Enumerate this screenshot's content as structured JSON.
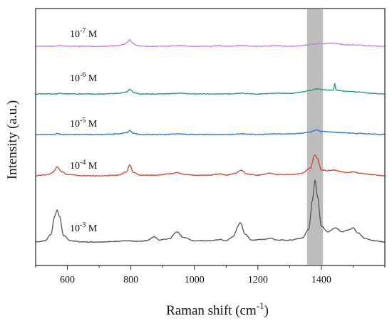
{
  "chart_data": {
    "type": "line",
    "title": "",
    "xlabel": "Raman shift (cm",
    "xlabel_sup": "-1",
    "xlabel_close": ")",
    "ylabel": "Intensity (a.u.)",
    "xlim": [
      500,
      1600
    ],
    "xticks": [
      600,
      800,
      1000,
      1200,
      1400
    ],
    "y_ticks_shown": false,
    "highlight_band": {
      "x_range": [
        1355,
        1405
      ],
      "color": "#bdbdbd"
    },
    "series": [
      {
        "name": "10-7 M",
        "label_base": "10",
        "label_exp": "-7",
        "label_unit": " M",
        "color": "#c77fe0",
        "points": [
          [
            500,
            0.0
          ],
          [
            540,
            0.0
          ],
          [
            560,
            0.0
          ],
          [
            575,
            0.01
          ],
          [
            600,
            0.0
          ],
          [
            650,
            0.0
          ],
          [
            700,
            0.0
          ],
          [
            760,
            0.01
          ],
          [
            780,
            0.03
          ],
          [
            790,
            0.07
          ],
          [
            797,
            0.1
          ],
          [
            805,
            0.05
          ],
          [
            820,
            0.01
          ],
          [
            850,
            0.0
          ],
          [
            900,
            0.0
          ],
          [
            950,
            0.01
          ],
          [
            1000,
            0.0
          ],
          [
            1050,
            0.0
          ],
          [
            1080,
            0.01
          ],
          [
            1100,
            0.0
          ],
          [
            1150,
            0.01
          ],
          [
            1200,
            0.0
          ],
          [
            1250,
            0.01
          ],
          [
            1300,
            0.0
          ],
          [
            1340,
            0.01
          ],
          [
            1370,
            0.03
          ],
          [
            1390,
            0.04
          ],
          [
            1410,
            0.04
          ],
          [
            1430,
            0.05
          ],
          [
            1450,
            0.04
          ],
          [
            1480,
            0.02
          ],
          [
            1510,
            0.02
          ],
          [
            1540,
            0.01
          ],
          [
            1600,
            0.0
          ]
        ]
      },
      {
        "name": "10-6 M",
        "label_base": "10",
        "label_exp": "-6",
        "label_unit": " M",
        "color": "#1e9e6a",
        "points": [
          [
            500,
            0.0
          ],
          [
            560,
            0.0
          ],
          [
            575,
            0.01
          ],
          [
            600,
            0.0
          ],
          [
            650,
            0.0
          ],
          [
            700,
            0.0
          ],
          [
            760,
            0.01
          ],
          [
            785,
            0.03
          ],
          [
            797,
            0.07
          ],
          [
            810,
            0.02
          ],
          [
            830,
            0.0
          ],
          [
            900,
            0.0
          ],
          [
            950,
            0.01
          ],
          [
            1000,
            0.0
          ],
          [
            1050,
            0.0
          ],
          [
            1100,
            0.0
          ],
          [
            1150,
            0.01
          ],
          [
            1200,
            0.0
          ],
          [
            1250,
            0.01
          ],
          [
            1300,
            0.01
          ],
          [
            1340,
            0.03
          ],
          [
            1370,
            0.06
          ],
          [
            1385,
            0.08
          ],
          [
            1400,
            0.07
          ],
          [
            1420,
            0.06
          ],
          [
            1438,
            0.06
          ],
          [
            1442,
            0.17
          ],
          [
            1446,
            0.06
          ],
          [
            1460,
            0.05
          ],
          [
            1480,
            0.04
          ],
          [
            1520,
            0.03
          ],
          [
            1560,
            0.01
          ],
          [
            1600,
            0.0
          ]
        ]
      },
      {
        "name": "10-5 M",
        "label_base": "10",
        "label_exp": "-5",
        "label_unit": " M",
        "color": "#2a78c8",
        "points": [
          [
            500,
            0.0
          ],
          [
            560,
            0.0
          ],
          [
            568,
            0.02
          ],
          [
            580,
            0.0
          ],
          [
            600,
            0.0
          ],
          [
            650,
            0.0
          ],
          [
            700,
            0.0
          ],
          [
            760,
            0.01
          ],
          [
            787,
            0.03
          ],
          [
            797,
            0.06
          ],
          [
            808,
            0.02
          ],
          [
            830,
            0.0
          ],
          [
            900,
            0.0
          ],
          [
            950,
            0.01
          ],
          [
            1000,
            0.0
          ],
          [
            1050,
            0.0
          ],
          [
            1100,
            0.0
          ],
          [
            1150,
            0.01
          ],
          [
            1200,
            0.0
          ],
          [
            1250,
            0.01
          ],
          [
            1300,
            0.01
          ],
          [
            1340,
            0.02
          ],
          [
            1365,
            0.04
          ],
          [
            1383,
            0.07
          ],
          [
            1400,
            0.05
          ],
          [
            1430,
            0.04
          ],
          [
            1460,
            0.03
          ],
          [
            1500,
            0.02
          ],
          [
            1550,
            0.01
          ],
          [
            1600,
            0.0
          ]
        ]
      },
      {
        "name": "10-4 M",
        "label_base": "10",
        "label_exp": "-4",
        "label_unit": " M",
        "color": "#d9452e",
        "points": [
          [
            500,
            0.0
          ],
          [
            540,
            0.02
          ],
          [
            555,
            0.06
          ],
          [
            568,
            0.14
          ],
          [
            580,
            0.07
          ],
          [
            600,
            0.02
          ],
          [
            650,
            0.0
          ],
          [
            700,
            0.0
          ],
          [
            760,
            0.01
          ],
          [
            785,
            0.06
          ],
          [
            797,
            0.17
          ],
          [
            808,
            0.05
          ],
          [
            830,
            0.01
          ],
          [
            880,
            0.01
          ],
          [
            920,
            0.03
          ],
          [
            945,
            0.05
          ],
          [
            970,
            0.02
          ],
          [
            1000,
            0.01
          ],
          [
            1050,
            0.01
          ],
          [
            1080,
            0.03
          ],
          [
            1100,
            0.01
          ],
          [
            1130,
            0.04
          ],
          [
            1147,
            0.09
          ],
          [
            1165,
            0.03
          ],
          [
            1200,
            0.01
          ],
          [
            1240,
            0.04
          ],
          [
            1260,
            0.02
          ],
          [
            1300,
            0.02
          ],
          [
            1340,
            0.04
          ],
          [
            1365,
            0.12
          ],
          [
            1380,
            0.33
          ],
          [
            1387,
            0.27
          ],
          [
            1400,
            0.09
          ],
          [
            1420,
            0.08
          ],
          [
            1440,
            0.09
          ],
          [
            1460,
            0.07
          ],
          [
            1480,
            0.05
          ],
          [
            1500,
            0.06
          ],
          [
            1520,
            0.04
          ],
          [
            1560,
            0.02
          ],
          [
            1600,
            0.0
          ]
        ]
      },
      {
        "name": "10-3 M",
        "label_base": "10",
        "label_exp": "-3",
        "label_unit": " M",
        "color": "#555555",
        "points": [
          [
            500,
            0.0
          ],
          [
            530,
            0.02
          ],
          [
            548,
            0.12
          ],
          [
            560,
            0.4
          ],
          [
            568,
            0.5
          ],
          [
            575,
            0.4
          ],
          [
            588,
            0.1
          ],
          [
            610,
            0.02
          ],
          [
            650,
            0.0
          ],
          [
            700,
            0.0
          ],
          [
            760,
            0.01
          ],
          [
            790,
            0.02
          ],
          [
            820,
            0.01
          ],
          [
            850,
            0.02
          ],
          [
            873,
            0.08
          ],
          [
            890,
            0.03
          ],
          [
            920,
            0.05
          ],
          [
            945,
            0.16
          ],
          [
            965,
            0.07
          ],
          [
            1000,
            0.02
          ],
          [
            1050,
            0.02
          ],
          [
            1080,
            0.04
          ],
          [
            1100,
            0.02
          ],
          [
            1120,
            0.08
          ],
          [
            1145,
            0.3
          ],
          [
            1160,
            0.12
          ],
          [
            1180,
            0.03
          ],
          [
            1220,
            0.04
          ],
          [
            1240,
            0.06
          ],
          [
            1260,
            0.03
          ],
          [
            1300,
            0.03
          ],
          [
            1340,
            0.06
          ],
          [
            1360,
            0.2
          ],
          [
            1372,
            0.65
          ],
          [
            1380,
            0.97
          ],
          [
            1388,
            0.7
          ],
          [
            1400,
            0.25
          ],
          [
            1420,
            0.16
          ],
          [
            1445,
            0.22
          ],
          [
            1465,
            0.16
          ],
          [
            1485,
            0.19
          ],
          [
            1500,
            0.22
          ],
          [
            1515,
            0.14
          ],
          [
            1540,
            0.05
          ],
          [
            1570,
            0.02
          ],
          [
            1600,
            0.0
          ]
        ]
      }
    ]
  }
}
